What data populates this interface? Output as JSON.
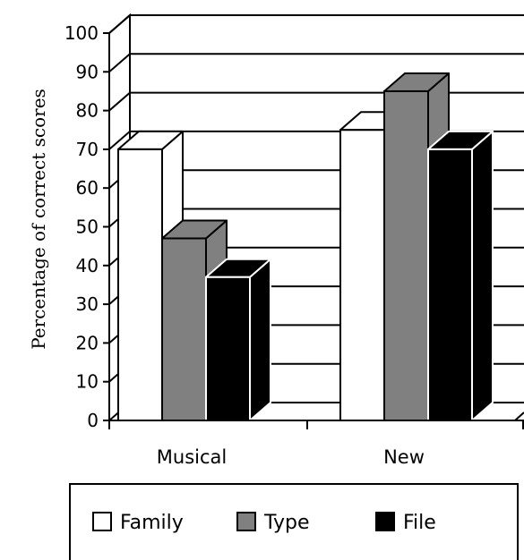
{
  "chart_data": {
    "type": "bar",
    "style": "3d-clustered-column",
    "title": "",
    "xlabel": "",
    "ylabel": "Percentage of correct scores",
    "ylim": [
      0,
      100
    ],
    "yticks": [
      0,
      10,
      20,
      30,
      40,
      50,
      60,
      70,
      80,
      90,
      100
    ],
    "grid": true,
    "categories": [
      "Musical",
      "New"
    ],
    "series": [
      {
        "name": "Family",
        "values": [
          70,
          75
        ],
        "color": "#ffffff"
      },
      {
        "name": "Type",
        "values": [
          47,
          85
        ],
        "color": "#808080"
      },
      {
        "name": "File",
        "values": [
          37,
          70
        ],
        "color": "#000000"
      }
    ],
    "legend": {
      "placement": "bottom"
    }
  }
}
